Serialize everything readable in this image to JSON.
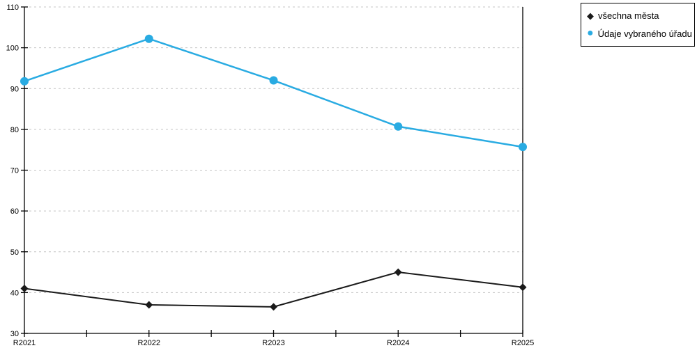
{
  "chart_data": {
    "type": "line",
    "title": "",
    "xlabel": "",
    "ylabel": "",
    "categories": [
      "R2021",
      "R2022",
      "R2023",
      "R2024",
      "R2025"
    ],
    "series": [
      {
        "name": "všechna města",
        "color": "#1a1a1a",
        "marker": "diamond",
        "values": [
          41,
          37,
          36.5,
          45,
          41.3
        ]
      },
      {
        "name": "Údaje vybraného úřadu",
        "color": "#29abe2",
        "marker": "circle",
        "values": [
          91.8,
          102.2,
          92,
          80.7,
          75.7
        ]
      }
    ],
    "ylim": [
      30,
      110
    ],
    "ytick_step": 10,
    "yticks": [
      30,
      40,
      50,
      60,
      70,
      80,
      90,
      100,
      110
    ],
    "grid": "horizontal-dashed",
    "legend_position": "top-right",
    "colors": {
      "grid": "#c4c4c4",
      "axis": "#000000",
      "background": "#ffffff"
    }
  }
}
